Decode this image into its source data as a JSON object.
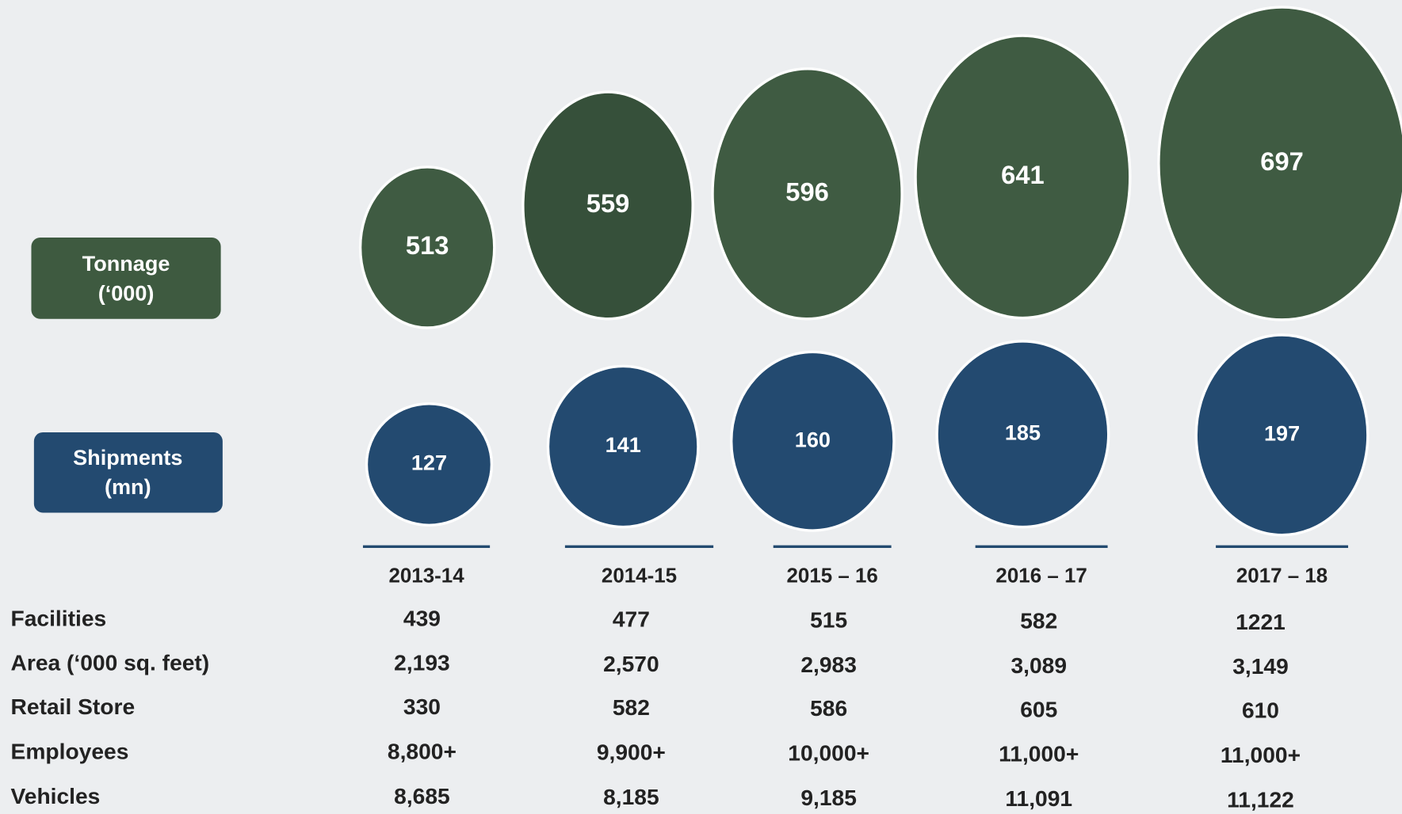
{
  "labels": {
    "tonnage": "Tonnage",
    "tonnage_unit": "(‘000)",
    "shipments": "Shipments",
    "shipments_unit": "(mn)"
  },
  "columns": [
    {
      "year": "2013-14",
      "tonnage": 513,
      "shipments": 127
    },
    {
      "year": "2014-15",
      "tonnage": 559,
      "shipments": 141
    },
    {
      "year": "2015 – 16",
      "tonnage": 596,
      "shipments": 160
    },
    {
      "year": "2016 – 17",
      "tonnage": 641,
      "shipments": 185
    },
    {
      "year": "2017 – 18",
      "tonnage": 697,
      "shipments": 197
    }
  ],
  "table": {
    "rows": [
      {
        "label": "Facilities",
        "values": [
          "439",
          "477",
          "515",
          "582",
          "1221"
        ]
      },
      {
        "label": "Area (‘000 sq. feet)",
        "values": [
          "2,193",
          "2,570",
          "2,983",
          "3,089",
          "3,149"
        ]
      },
      {
        "label": "Retail Store",
        "values": [
          "330",
          "582",
          "586",
          "605",
          "610"
        ]
      },
      {
        "label": "Employees",
        "values": [
          "8,800+",
          "9,900+",
          "10,000+",
          "11,000+",
          "11,000+"
        ]
      },
      {
        "label": "Vehicles",
        "values": [
          "8,685",
          "8,185",
          "9,185",
          "11,091",
          "11,122"
        ]
      }
    ]
  }
}
